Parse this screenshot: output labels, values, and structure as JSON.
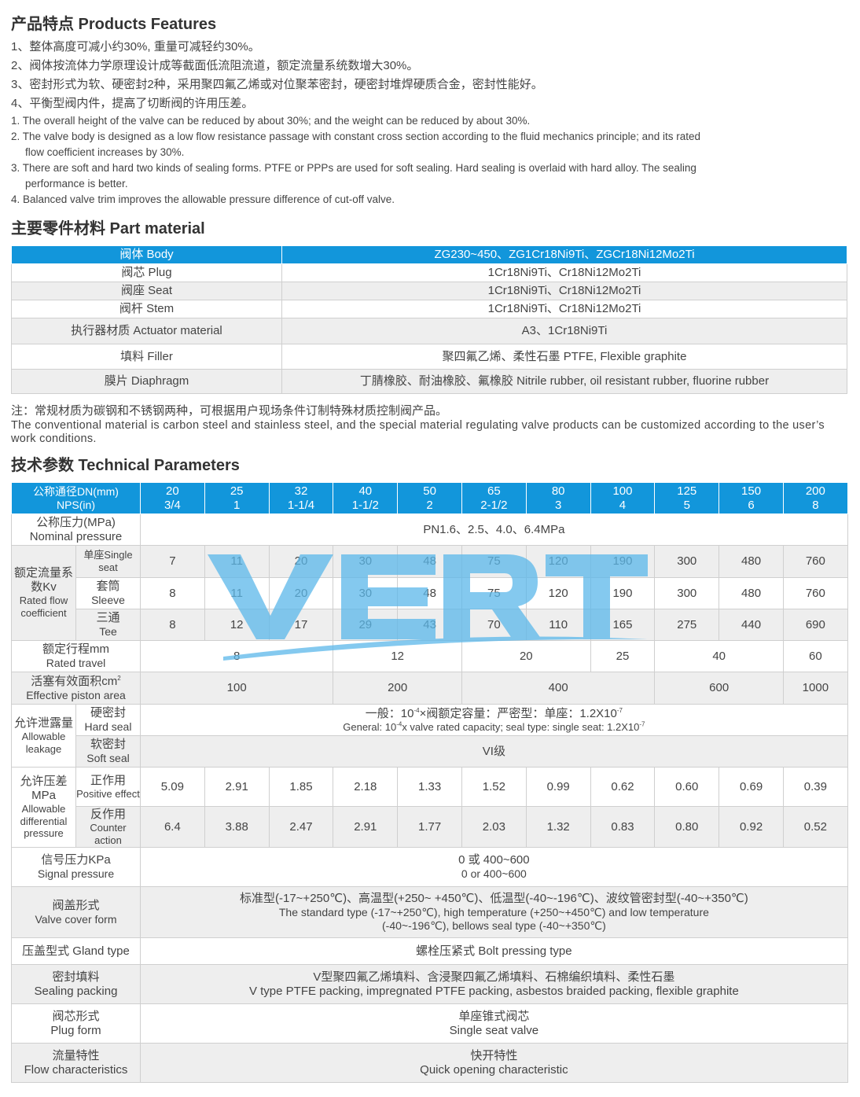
{
  "features": {
    "title": "产品特点 Products Features",
    "cn": [
      "1、整体高度可减小约30%, 重量可减轻约30%。",
      "2、阀体按流体力学原理设计成等截面低流阻流道，额定流量系统数增大30%。",
      "3、密封形式为软、硬密封2种，采用聚四氟乙烯或对位聚苯密封，硬密封堆焊硬质合金，密封性能好。",
      "4、平衡型阀内件，提高了切断阀的许用压差。"
    ],
    "en": [
      "1. The overall height of the valve can be reduced by about 30%; and the weight can be reduced by about 30%.",
      "2. The valve body is designed as a low flow resistance passage with constant cross section according to the fluid mechanics principle; and its rated",
      "flow coefficient increases by 30%.",
      "3. There are soft and hard two kinds of sealing forms. PTFE or PPPs are used for soft sealing. Hard sealing is overlaid with hard alloy. The sealing",
      "performance is better.",
      "4. Balanced valve trim improves the allowable pressure difference of cut-off valve."
    ]
  },
  "material": {
    "title": "主要零件材料 Part material",
    "rows": [
      [
        "阀体 Body",
        "ZG230~450、ZG1Cr18Ni9Ti、ZGCr18Ni12Mo2Ti"
      ],
      [
        "阀芯 Plug",
        "1Cr18Ni9Ti、Cr18Ni12Mo2Ti"
      ],
      [
        "阀座 Seat",
        "1Cr18Ni9Ti、Cr18Ni12Mo2Ti"
      ],
      [
        "阀杆 Stem",
        "1Cr18Ni9Ti、Cr18Ni12Mo2Ti"
      ],
      [
        "执行器材质 Actuator material",
        "A3、1Cr18Ni9Ti"
      ],
      [
        "填料 Filler",
        "聚四氟乙烯、柔性石墨 PTFE, Flexible graphite"
      ],
      [
        "膜片 Diaphragm",
        "丁腈橡胶、耐油橡胶、氟橡胶 Nitrile rubber, oil resistant rubber, fluorine rubber"
      ]
    ],
    "note_cn": "注：常规材质为碳钢和不锈钢两种，可根据用户现场条件订制特殊材质控制阀产品。",
    "note_en": "The conventional material is carbon steel and stainless steel, and the special material regulating valve products can be customized according to the user’s work conditions."
  },
  "tech": {
    "title": "技术参数 Technical Parameters",
    "header": {
      "cn": "公称通径DN(mm)",
      "en": "NPS(in)",
      "dn": [
        "20",
        "25",
        "32",
        "40",
        "50",
        "65",
        "80",
        "100",
        "125",
        "150",
        "200"
      ],
      "nps": [
        "3/4",
        "1",
        "1-1/4",
        "1-1/2",
        "2",
        "2-1/2",
        "3",
        "4",
        "5",
        "6",
        "8"
      ]
    },
    "nominal": {
      "cn": "公称压力(MPa)",
      "en": "Nominal pressure",
      "value": "PN1.6、2.5、4.0、6.4MPa"
    },
    "kv": {
      "cn": "额定流量系数Kv",
      "en": "Rated flow coefficient",
      "single": {
        "cn": "单座Single",
        "en": "seat",
        "values": [
          "7",
          "11",
          "20",
          "30",
          "48",
          "75",
          "120",
          "190",
          "300",
          "480",
          "760"
        ]
      },
      "sleeve": {
        "cn": "套筒",
        "en": "Sleeve",
        "values": [
          "8",
          "11",
          "20",
          "30",
          "48",
          "75",
          "120",
          "190",
          "300",
          "480",
          "760"
        ]
      },
      "tee": {
        "cn": "三通",
        "en": "Tee",
        "values": [
          "8",
          "12",
          "17",
          "29",
          "43",
          "70",
          "110",
          "165",
          "275",
          "440",
          "690"
        ]
      }
    },
    "travel": {
      "cn": "额定行程mm",
      "en": "Rated travel",
      "values": [
        "8",
        "12",
        "20",
        "25",
        "40",
        "60"
      ]
    },
    "piston": {
      "cn": "活塞有效面积cm",
      "sup": "2",
      "en": "Effective piston area",
      "values": [
        "100",
        "200",
        "400",
        "600",
        "1000"
      ]
    },
    "leakage": {
      "cn": "允许泄露量",
      "en": "Allowable leakage",
      "hard": {
        "cn": "硬密封",
        "en": "Hard seal",
        "l1a": "一般：10",
        "l1s": "-4",
        "l1b": "×阀额定容量：严密型：单座：1.2X10",
        "l1t": "-7",
        "l2a": "General: 10",
        "l2s": "-4",
        "l2b": "x valve rated capacity; seal type: single seat: 1.2X10",
        "l2t": "-7"
      },
      "soft": {
        "cn": "软密封",
        "en": "Soft seal",
        "value": "VI级"
      }
    },
    "dp": {
      "cn": "允许压差MPa",
      "en": "Allowable differential pressure",
      "positive": {
        "cn": "正作用",
        "en": "Positive effect",
        "values": [
          "5.09",
          "2.91",
          "1.85",
          "2.18",
          "1.33",
          "1.52",
          "0.99",
          "0.62",
          "0.60",
          "0.69",
          "0.39"
        ]
      },
      "counter": {
        "cn": "反作用",
        "en": "Counter action",
        "values": [
          "6.4",
          "3.88",
          "2.47",
          "2.91",
          "1.77",
          "2.03",
          "1.32",
          "0.83",
          "0.80",
          "0.92",
          "0.52"
        ]
      }
    },
    "signal": {
      "cn": "信号压力KPa",
      "en": "Signal pressure",
      "v1": "0 或 400~600",
      "v2": "0 or 400~600"
    },
    "cover": {
      "cn": "阀盖形式",
      "en": "Valve cover form",
      "v1": "标准型(-17~+250℃)、高温型(+250~ +450℃)、低温型(-40~-196℃)、波纹管密封型(-40~+350℃)",
      "v2": "The standard type (-17~+250℃), high temperature (+250~+450℃)  and low temperature",
      "v3": "(-40~-196℃), bellows seal type (-40~+350℃)"
    },
    "gland": {
      "label": "压盖型式 Gland type",
      "value": "螺栓压紧式 Bolt pressing type"
    },
    "packing": {
      "cn": "密封填料",
      "en": "Sealing packing",
      "v1": "V型聚四氟乙烯填料、含浸聚四氟乙烯填料、石棉编织填料、柔性石墨",
      "v2": "V type PTFE packing, impregnated PTFE packing, asbestos braided packing, flexible graphite"
    },
    "plug": {
      "cn": "阀芯形式",
      "en": "Plug form",
      "v1": "单座锥式阀芯",
      "v2": "Single seat valve"
    },
    "flow": {
      "cn": "流量特性",
      "en": "Flow characteristics",
      "v1": "快开特性",
      "v2": "Quick opening characteristic"
    }
  },
  "watermark": {
    "text": "VERT",
    "color": "#5bb8ea"
  },
  "colors": {
    "accent": "#1296db",
    "row_alt": "#eeeeee"
  }
}
